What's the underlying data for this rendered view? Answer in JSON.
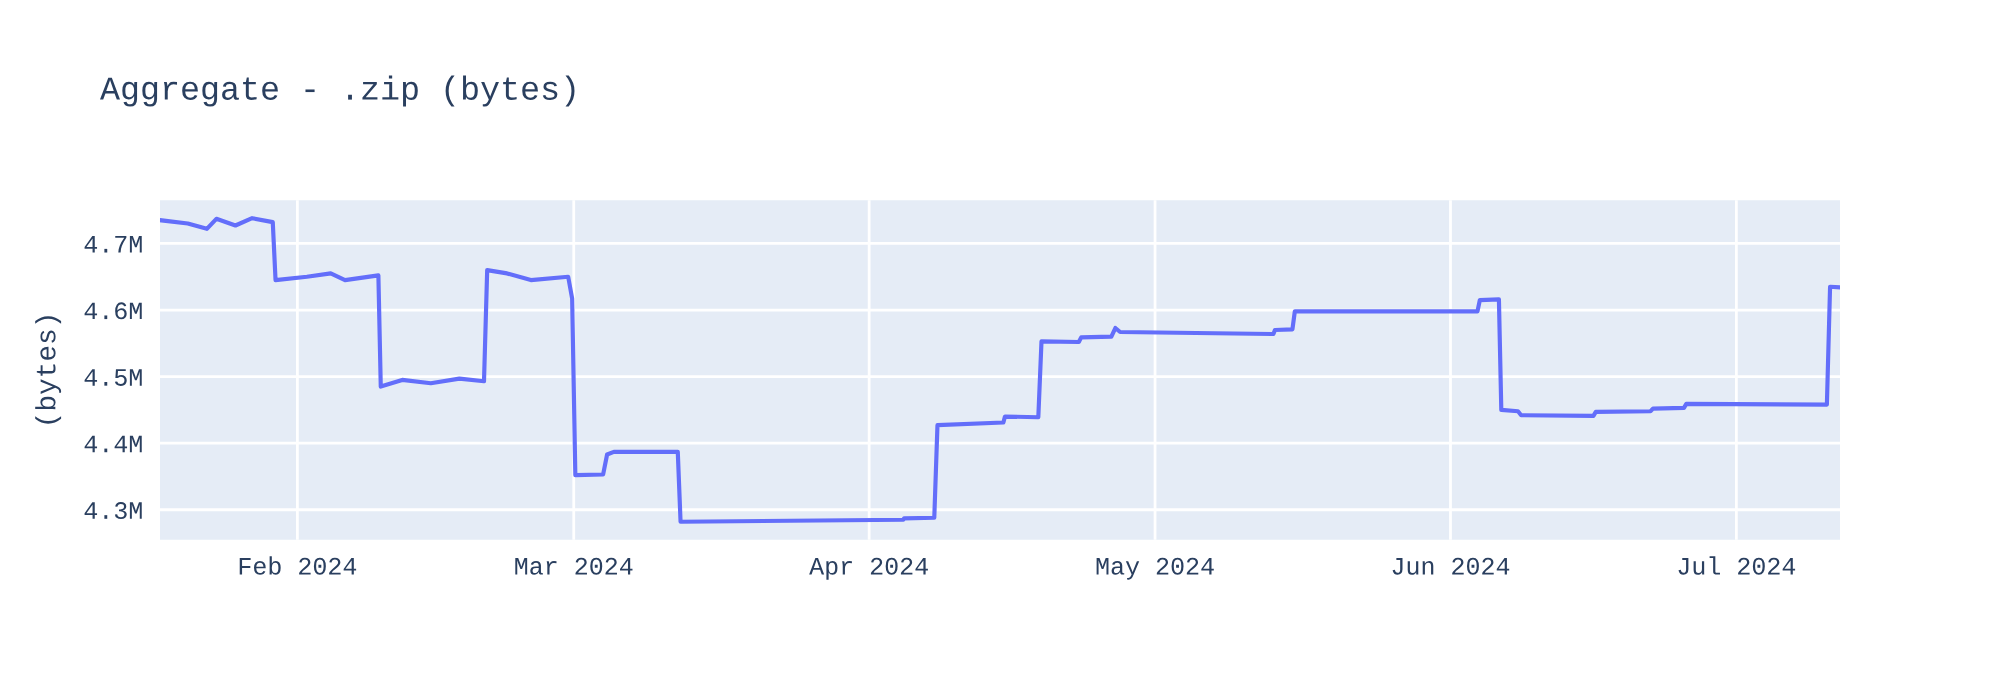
{
  "chart_data": {
    "type": "line",
    "title": "Aggregate - .zip (bytes)",
    "ylabel": "(bytes)",
    "x": [
      "2024-01-17T14:00",
      "2024-01-20T12:00",
      "2024-01-22T12:00",
      "2024-01-23T12:00",
      "2024-01-25T12:00",
      "2024-01-27T06:00",
      "2024-01-29T10:00",
      "2024-01-29T17:00",
      "2024-02-02T00:00",
      "2024-02-04T12:00",
      "2024-02-06T00:00",
      "2024-02-09T12:00",
      "2024-02-09T18:00",
      "2024-02-12T00:00",
      "2024-02-15T00:00",
      "2024-02-18T00:00",
      "2024-02-20T14:00",
      "2024-02-20T22:00",
      "2024-02-23T00:00",
      "2024-02-25T12:00",
      "2024-02-29T10:00",
      "2024-02-29T20:00",
      "2024-03-01T04:00",
      "2024-03-04T02:00",
      "2024-03-04T12:00",
      "2024-03-05T05:00",
      "2024-03-11T22:00",
      "2024-03-12T05:00",
      "2024-04-04T14:00",
      "2024-04-04T16:00",
      "2024-04-07T20:00",
      "2024-04-08T04:00",
      "2024-04-15T02:00",
      "2024-04-15T06:00",
      "2024-04-18T18:00",
      "2024-04-19T02:00",
      "2024-04-23T00:00",
      "2024-04-23T06:00",
      "2024-04-26T10:00",
      "2024-04-26T20:00",
      "2024-04-27T08:00",
      "2024-05-13T10:00",
      "2024-05-13T14:00",
      "2024-05-15T10:00",
      "2024-05-15T16:00",
      "2024-05-27T00:00",
      "2024-06-03T20:00",
      "2024-06-04T02:00",
      "2024-06-06T02:00",
      "2024-06-06T08:00",
      "2024-06-08T02:00",
      "2024-06-08T10:00",
      "2024-06-16T00:00",
      "2024-06-16T06:00",
      "2024-06-22T00:00",
      "2024-06-22T06:00",
      "2024-06-25T12:00",
      "2024-06-25T18:00",
      "2024-07-10T12:00",
      "2024-07-10T20:00",
      "2024-07-11T21:00"
    ],
    "series": [
      {
        "color": "#636efa",
        "values": [
          4735000,
          4730000,
          4722000,
          4737000,
          4727000,
          4738000,
          4732000,
          4645000,
          4650000,
          4655000,
          4645000,
          4652000,
          4485000,
          4495000,
          4490000,
          4497000,
          4493000,
          4660000,
          4655000,
          4645000,
          4650000,
          4617000,
          4352000,
          4353000,
          4383000,
          4387000,
          4387000,
          4282000,
          4285000,
          4287000,
          4288000,
          4427000,
          4431000,
          4440000,
          4439000,
          4553000,
          4552000,
          4559000,
          4560000,
          4573000,
          4567000,
          4564000,
          4570000,
          4571000,
          4598000,
          4598000,
          4598000,
          4615000,
          4616000,
          4450000,
          4448000,
          4442000,
          4441000,
          4447000,
          4448000,
          4452000,
          4453000,
          4459000,
          4458000,
          4635000,
          4634000
        ]
      }
    ],
    "xlim": [
      "2024-01-17T14:00",
      "2024-07-11T21:00"
    ],
    "xticks": [
      {
        "value": "2024-02-01",
        "label": "Feb 2024"
      },
      {
        "value": "2024-03-01",
        "label": "Mar 2024"
      },
      {
        "value": "2024-04-01",
        "label": "Apr 2024"
      },
      {
        "value": "2024-05-01",
        "label": "May 2024"
      },
      {
        "value": "2024-06-01",
        "label": "Jun 2024"
      },
      {
        "value": "2024-07-01",
        "label": "Jul 2024"
      }
    ],
    "ylim": [
      4255000,
      4765000
    ],
    "yticks": [
      {
        "value": 4300000,
        "label": "4.3M"
      },
      {
        "value": 4400000,
        "label": "4.4M"
      },
      {
        "value": 4500000,
        "label": "4.5M"
      },
      {
        "value": 4600000,
        "label": "4.6M"
      },
      {
        "value": 4700000,
        "label": "4.7M"
      }
    ],
    "grid": true,
    "marker": "none",
    "line_style": "solid"
  }
}
